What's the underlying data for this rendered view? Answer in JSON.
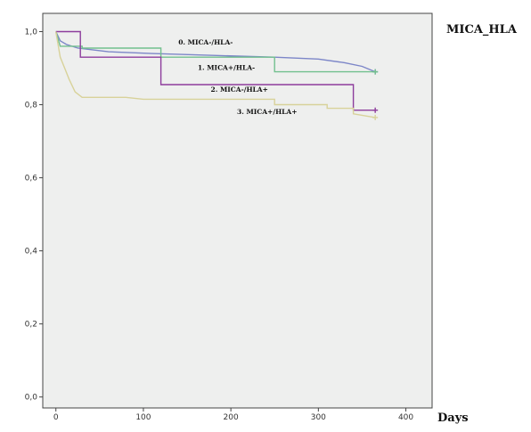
{
  "chart_data": {
    "type": "line",
    "step": true,
    "title": "",
    "xlabel": "Days",
    "ylabel": "",
    "legend_title": "MICA_HLA",
    "xlim": [
      -15,
      430
    ],
    "ylim": [
      -0.03,
      1.05
    ],
    "x_ticks": [
      0,
      100,
      200,
      300,
      400
    ],
    "y_ticks": [
      0.0,
      0.2,
      0.4,
      0.6,
      0.8,
      1.0
    ],
    "y_tick_labels": [
      "0,0",
      "0,2",
      "0,4",
      "0,6",
      "0,8",
      "1,0"
    ],
    "grid": false,
    "background": "#eeefee",
    "series": [
      {
        "name": "0. MICA-/HLA-",
        "color": "#7c86c8",
        "points": [
          [
            0,
            1.0
          ],
          [
            5,
            0.975
          ],
          [
            12,
            0.965
          ],
          [
            25,
            0.955
          ],
          [
            60,
            0.945
          ],
          [
            110,
            0.94
          ],
          [
            180,
            0.935
          ],
          [
            250,
            0.93
          ],
          [
            300,
            0.925
          ],
          [
            330,
            0.915
          ],
          [
            350,
            0.905
          ],
          [
            365,
            0.89
          ]
        ],
        "label_at": [
          140,
          0.965
        ]
      },
      {
        "name": "1. MICA+/HLA-",
        "color": "#72c08e",
        "points": [
          [
            0,
            1.0
          ],
          [
            5,
            0.96
          ],
          [
            30,
            0.96
          ],
          [
            30,
            0.955
          ],
          [
            120,
            0.955
          ],
          [
            120,
            0.93
          ],
          [
            250,
            0.93
          ],
          [
            250,
            0.89
          ],
          [
            365,
            0.89
          ]
        ],
        "label_at": [
          162,
          0.895
        ]
      },
      {
        "name": "2. MICA-/HLA+",
        "color": "#8d3c9c",
        "points": [
          [
            0,
            1.0
          ],
          [
            28,
            1.0
          ],
          [
            28,
            0.93
          ],
          [
            120,
            0.93
          ],
          [
            120,
            0.855
          ],
          [
            340,
            0.855
          ],
          [
            340,
            0.785
          ],
          [
            365,
            0.785
          ]
        ],
        "label_at": [
          177,
          0.835
        ]
      },
      {
        "name": "3. MICA+/HLA+",
        "color": "#d8d29a",
        "points": [
          [
            0,
            1.0
          ],
          [
            5,
            0.93
          ],
          [
            10,
            0.9
          ],
          [
            15,
            0.87
          ],
          [
            22,
            0.835
          ],
          [
            30,
            0.82
          ],
          [
            80,
            0.82
          ],
          [
            100,
            0.815
          ],
          [
            250,
            0.815
          ],
          [
            250,
            0.8
          ],
          [
            310,
            0.8
          ],
          [
            310,
            0.79
          ],
          [
            340,
            0.79
          ],
          [
            340,
            0.775
          ],
          [
            365,
            0.765
          ]
        ],
        "label_at": [
          207,
          0.775
        ]
      }
    ]
  }
}
